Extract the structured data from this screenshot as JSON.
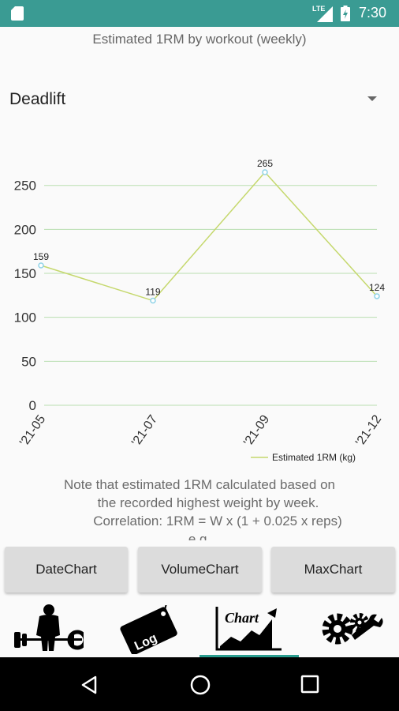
{
  "status_bar": {
    "network": "LTE",
    "time": "7:30"
  },
  "title": "Estimated 1RM by workout (weekly)",
  "exercise_spinner": {
    "selected": "Deadlift"
  },
  "chart_data": {
    "type": "line",
    "x": [
      "'21-05",
      "'21-07",
      "'21-09",
      "'21-12"
    ],
    "series": [
      {
        "name": "Estimated 1RM (kg)",
        "values": [
          159,
          119,
          265,
          124
        ],
        "color": "#c5d86d"
      }
    ],
    "point_labels": [
      "159",
      "119",
      "265",
      "124"
    ],
    "y_ticks": [
      "0",
      "50",
      "100",
      "150",
      "200",
      "250"
    ],
    "ylim": [
      0,
      265
    ],
    "grid": true,
    "grid_color": "#b9dfb0",
    "point_color": "#8fd3e8",
    "legend_position": "bottom-right"
  },
  "note": {
    "line1": "Note that estimated 1RM calculated based on",
    "line2": "the recorded highest weight by week.",
    "line3": "Correlation: 1RM = W x (1 + 0.025 x reps)",
    "line4": "e.g."
  },
  "buttons": {
    "date_chart": "DateChart",
    "volume_chart": "VolumeChart",
    "max_chart": "MaxChart"
  },
  "tabs": {
    "workout_icon": "weightlifter-icon",
    "log_icon": "log-tag-icon",
    "log_label": "Log",
    "chart_icon": "chart-icon",
    "chart_label": "Chart",
    "settings_icon": "gears-wrench-icon",
    "selected": "chart"
  },
  "colors": {
    "status_bar": "#3a9b93",
    "accent": "#2a9d8f",
    "button_bg": "#dcdcdc"
  }
}
